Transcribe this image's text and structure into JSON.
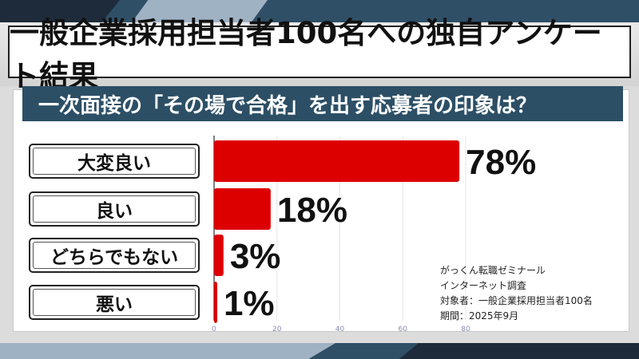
{
  "main_title": "一般企業採用担当者100名への独自アンケート結果",
  "question": "一次面接の「その場で合格」を出す応募者の印象は？",
  "colors": {
    "bar": "#dd0000",
    "header": "#2c4f66",
    "band_dark": "#1d2b3a",
    "band_light": "#9fb2c4"
  },
  "chart_data": {
    "type": "bar",
    "orientation": "horizontal",
    "categories": [
      "大変良い",
      "良い",
      "どちらでもない",
      "悪い"
    ],
    "values": [
      78,
      18,
      3,
      1
    ],
    "value_labels": [
      "78%",
      "18%",
      "3%",
      "1%"
    ],
    "xlim": [
      0,
      80
    ],
    "x_ticks": [
      0,
      20,
      40,
      60,
      80
    ],
    "x_tick_labels": [
      "0",
      "20",
      "40",
      "60",
      "80"
    ],
    "grid": true
  },
  "source": {
    "lines": [
      "がっくん転職ゼミナール",
      "インターネット調査",
      "対象者：一般企業採用担当者100名",
      "期間：2025年9月"
    ]
  }
}
